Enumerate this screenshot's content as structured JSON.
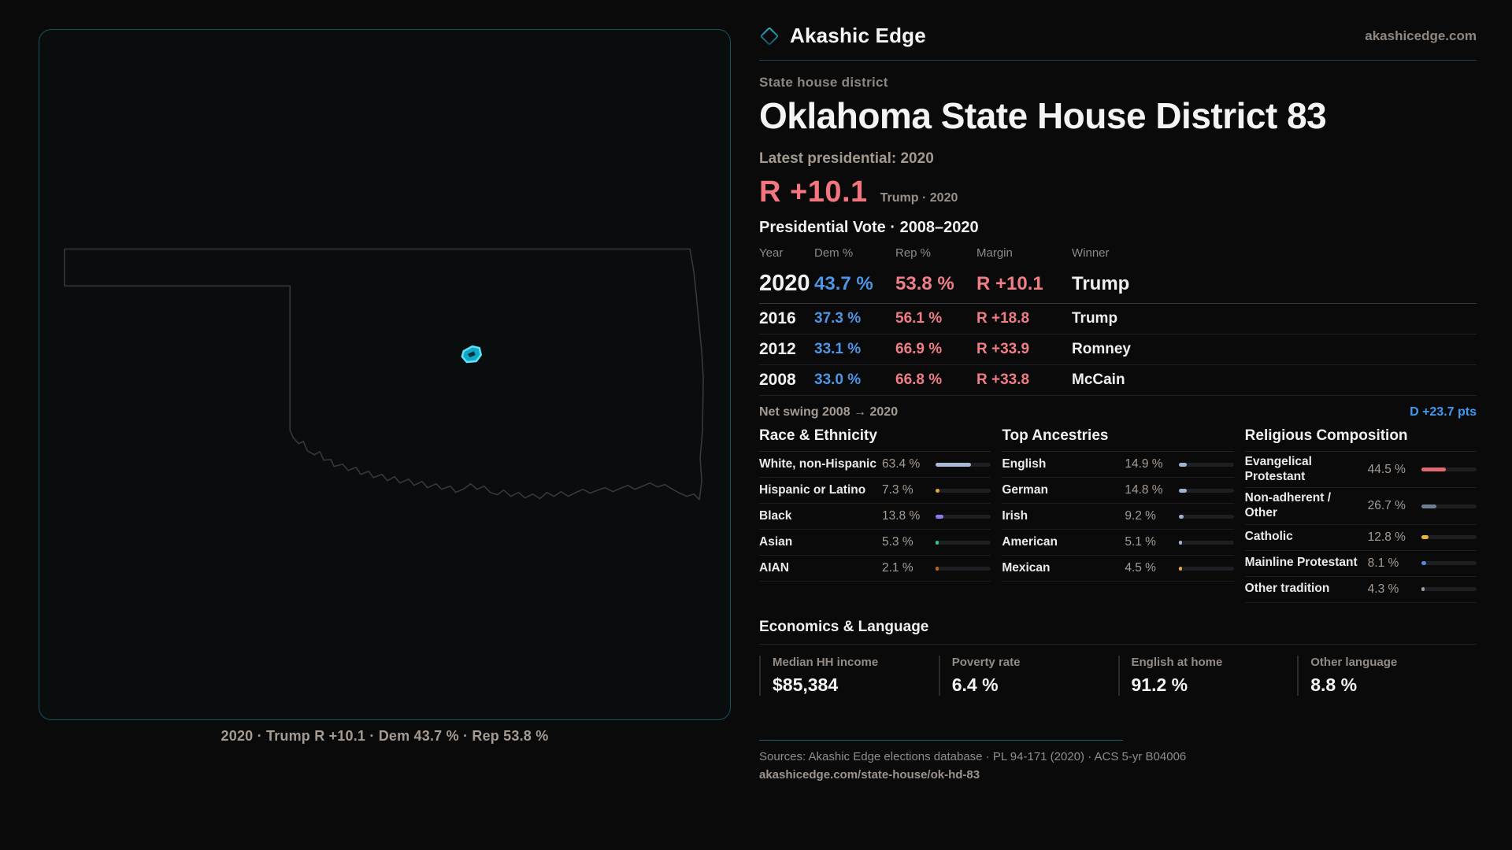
{
  "brand": {
    "name": "Akashic Edge",
    "site": "akashicedge.com",
    "logo_icon": "diamond-icon",
    "accent_teal": "#1f93ad"
  },
  "header": {
    "eyebrow": "State house district",
    "title": "Oklahoma State House District 83"
  },
  "latest": {
    "label": "Latest presidential: 2020",
    "margin": "R +10.1",
    "context": "Trump · 2020",
    "margin_color": "#f4757d"
  },
  "map": {
    "caption": "2020 · Trump R +10.1 · Dem 43.7 % · Rep 53.8 %",
    "district_color": "#17c0de",
    "outline_color": "#38383b"
  },
  "table": {
    "heading": "Presidential Vote · 2008–2020",
    "columns": [
      "Year",
      "Dem %",
      "Rep %",
      "Margin",
      "Winner"
    ],
    "rows": [
      {
        "year": "2020",
        "dem": "43.7 %",
        "rep": "53.8 %",
        "margin": "R +10.1",
        "winner": "Trump",
        "highlight": true
      },
      {
        "year": "2016",
        "dem": "37.3 %",
        "rep": "56.1 %",
        "margin": "R +18.8",
        "winner": "Trump"
      },
      {
        "year": "2012",
        "dem": "33.1 %",
        "rep": "66.9 %",
        "margin": "R +33.9",
        "winner": "Romney"
      },
      {
        "year": "2008",
        "dem": "33.0 %",
        "rep": "66.8 %",
        "margin": "R +33.8",
        "winner": "McCain"
      }
    ],
    "net_swing_label": "Net swing 2008 → 2020",
    "net_swing_value": "D +23.7 pts",
    "dem_color": "#4e95e6",
    "rep_color": "#ef7e86",
    "swing_color": "#3e9bf0"
  },
  "demographics": [
    {
      "heading": "Race & Ethnicity",
      "rows": [
        {
          "label": "White, non-Hispanic",
          "value": "63.4 %",
          "pct": 63.4,
          "color": "#a7b9d4"
        },
        {
          "label": "Hispanic or Latino",
          "value": "7.3 %",
          "pct": 7.3,
          "color": "#e5a43c"
        },
        {
          "label": "Black",
          "value": "13.8 %",
          "pct": 13.8,
          "color": "#8d7cf0"
        },
        {
          "label": "Asian",
          "value": "5.3 %",
          "pct": 5.3,
          "color": "#34bf8e"
        },
        {
          "label": "AIAN",
          "value": "2.1 %",
          "pct": 2.1,
          "color": "#b8641f"
        }
      ]
    },
    {
      "heading": "Top Ancestries",
      "rows": [
        {
          "label": "English",
          "value": "14.9 %",
          "pct": 14.9,
          "color": "#9fb4d1"
        },
        {
          "label": "German",
          "value": "14.8 %",
          "pct": 14.8,
          "color": "#9fb4d1"
        },
        {
          "label": "Irish",
          "value": "9.2 %",
          "pct": 9.2,
          "color": "#9fb4d1"
        },
        {
          "label": "American",
          "value": "5.1 %",
          "pct": 5.1,
          "color": "#9fb4d1"
        },
        {
          "label": "Mexican",
          "value": "4.5 %",
          "pct": 4.5,
          "color": "#e5a43c"
        }
      ]
    },
    {
      "heading": "Religious Composition",
      "rows": [
        {
          "label": "Evangelical Protestant",
          "value": "44.5 %",
          "pct": 44.5,
          "color": "#e06a6f"
        },
        {
          "label": "Non-adherent / Other",
          "value": "26.7 %",
          "pct": 26.7,
          "color": "#6d7f94"
        },
        {
          "label": "Catholic",
          "value": "12.8 %",
          "pct": 12.8,
          "color": "#e8b33c"
        },
        {
          "label": "Mainline Protestant",
          "value": "8.1 %",
          "pct": 8.1,
          "color": "#4a90e2"
        },
        {
          "label": "Other tradition",
          "value": "4.3 %",
          "pct": 4.3,
          "color": "#9aa0a6"
        }
      ]
    }
  ],
  "economics": {
    "heading": "Economics & Language",
    "stats": [
      {
        "label": "Median HH income",
        "value": "$85,384"
      },
      {
        "label": "Poverty rate",
        "value": "6.4 %"
      },
      {
        "label": "English at home",
        "value": "91.2 %"
      },
      {
        "label": "Other language",
        "value": "8.8 %"
      }
    ]
  },
  "footer": {
    "sources": "Sources: Akashic Edge elections database · PL 94-171 (2020) · ACS 5-yr B04006",
    "permalink": "akashicedge.com/state-house/ok-hd-83"
  },
  "chart_data": [
    {
      "type": "table",
      "title": "Presidential Vote · 2008–2020",
      "columns": [
        "Year",
        "Dem %",
        "Rep %",
        "Margin",
        "Winner"
      ],
      "rows": [
        [
          "2020",
          43.7,
          53.8,
          "R +10.1",
          "Trump"
        ],
        [
          "2016",
          37.3,
          56.1,
          "R +18.8",
          "Trump"
        ],
        [
          "2012",
          33.1,
          66.9,
          "R +33.9",
          "Romney"
        ],
        [
          "2008",
          33.0,
          66.8,
          "R +33.8",
          "McCain"
        ]
      ],
      "net_swing_2008_to_2020": "D +23.7 pts"
    },
    {
      "type": "bar",
      "title": "Race & Ethnicity",
      "categories": [
        "White, non-Hispanic",
        "Hispanic or Latino",
        "Black",
        "Asian",
        "AIAN"
      ],
      "values": [
        63.4,
        7.3,
        13.8,
        5.3,
        2.1
      ],
      "xlim": [
        0,
        100
      ],
      "unit": "%"
    },
    {
      "type": "bar",
      "title": "Top Ancestries",
      "categories": [
        "English",
        "German",
        "Irish",
        "American",
        "Mexican"
      ],
      "values": [
        14.9,
        14.8,
        9.2,
        5.1,
        4.5
      ],
      "xlim": [
        0,
        100
      ],
      "unit": "%"
    },
    {
      "type": "bar",
      "title": "Religious Composition",
      "categories": [
        "Evangelical Protestant",
        "Non-adherent / Other",
        "Catholic",
        "Mainline Protestant",
        "Other tradition"
      ],
      "values": [
        44.5,
        26.7,
        12.8,
        8.1,
        4.3
      ],
      "xlim": [
        0,
        100
      ],
      "unit": "%"
    },
    {
      "type": "bar",
      "title": "Economics & Language",
      "categories": [
        "Median HH income",
        "Poverty rate",
        "English at home",
        "Other language"
      ],
      "values": [
        85384,
        6.4,
        91.2,
        8.8
      ]
    }
  ]
}
